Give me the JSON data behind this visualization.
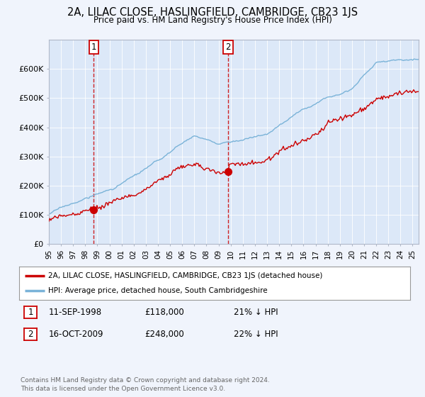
{
  "title": "2A, LILAC CLOSE, HASLINGFIELD, CAMBRIDGE, CB23 1JS",
  "subtitle": "Price paid vs. HM Land Registry's House Price Index (HPI)",
  "bg_color": "#f0f4fc",
  "plot_bg_color": "#dce8f8",
  "hpi_color": "#7ab3d8",
  "price_color": "#cc0000",
  "dashed_color": "#cc0000",
  "legend_line1": "2A, LILAC CLOSE, HASLINGFIELD, CAMBRIDGE, CB23 1JS (detached house)",
  "legend_line2": "HPI: Average price, detached house, South Cambridgeshire",
  "note1_date": "11-SEP-1998",
  "note1_price": "£118,000",
  "note1_pct": "21% ↓ HPI",
  "note2_date": "16-OCT-2009",
  "note2_price": "£248,000",
  "note2_pct": "22% ↓ HPI",
  "footer": "Contains HM Land Registry data © Crown copyright and database right 2024.\nThis data is licensed under the Open Government Licence v3.0.",
  "ylim_min": 0,
  "ylim_max": 700000,
  "yticks": [
    0,
    100000,
    200000,
    300000,
    400000,
    500000,
    600000
  ],
  "ytick_labels": [
    "£0",
    "£100K",
    "£200K",
    "£300K",
    "£400K",
    "£500K",
    "£600K"
  ],
  "sale1_t": 1998.708,
  "sale1_p": 118000,
  "sale2_t": 2009.792,
  "sale2_p": 248000
}
